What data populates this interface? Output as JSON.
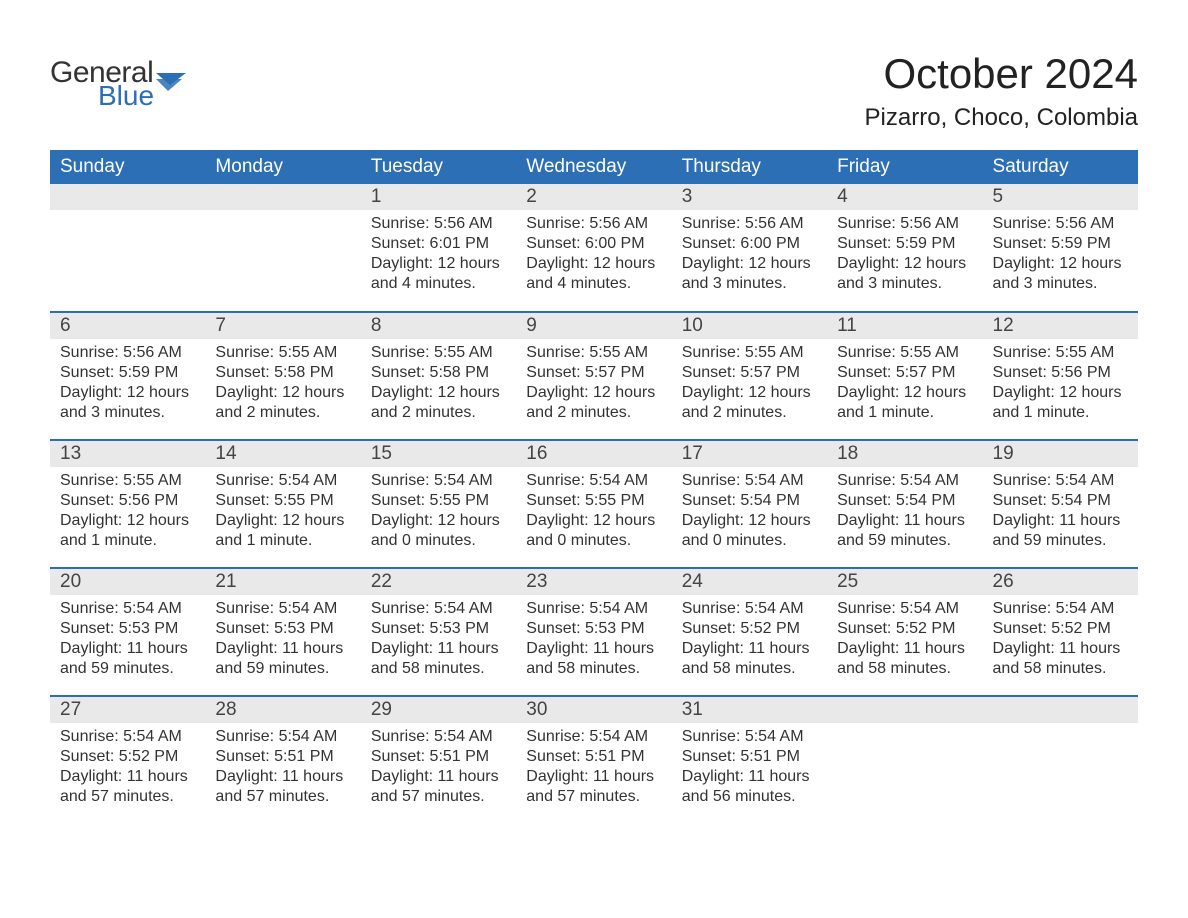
{
  "logo": {
    "general": "General",
    "blue": "Blue",
    "flag_color": "#2c6fb5"
  },
  "title": "October 2024",
  "location": "Pizarro, Choco, Colombia",
  "colors": {
    "header_bg": "#2c6fb5",
    "header_text": "#ffffff",
    "daynum_bg": "#e9e9e9",
    "row_divider": "#2c6fb5",
    "body_text": "#333333",
    "page_bg": "#ffffff"
  },
  "fonts": {
    "title_size": 42,
    "location_size": 24,
    "dayheader_size": 19,
    "body_size": 16
  },
  "day_headers": [
    "Sunday",
    "Monday",
    "Tuesday",
    "Wednesday",
    "Thursday",
    "Friday",
    "Saturday"
  ],
  "weeks": [
    [
      null,
      null,
      {
        "n": "1",
        "sunrise": "5:56 AM",
        "sunset": "6:01 PM",
        "daylight": "12 hours and 4 minutes."
      },
      {
        "n": "2",
        "sunrise": "5:56 AM",
        "sunset": "6:00 PM",
        "daylight": "12 hours and 4 minutes."
      },
      {
        "n": "3",
        "sunrise": "5:56 AM",
        "sunset": "6:00 PM",
        "daylight": "12 hours and 3 minutes."
      },
      {
        "n": "4",
        "sunrise": "5:56 AM",
        "sunset": "5:59 PM",
        "daylight": "12 hours and 3 minutes."
      },
      {
        "n": "5",
        "sunrise": "5:56 AM",
        "sunset": "5:59 PM",
        "daylight": "12 hours and 3 minutes."
      }
    ],
    [
      {
        "n": "6",
        "sunrise": "5:56 AM",
        "sunset": "5:59 PM",
        "daylight": "12 hours and 3 minutes."
      },
      {
        "n": "7",
        "sunrise": "5:55 AM",
        "sunset": "5:58 PM",
        "daylight": "12 hours and 2 minutes."
      },
      {
        "n": "8",
        "sunrise": "5:55 AM",
        "sunset": "5:58 PM",
        "daylight": "12 hours and 2 minutes."
      },
      {
        "n": "9",
        "sunrise": "5:55 AM",
        "sunset": "5:57 PM",
        "daylight": "12 hours and 2 minutes."
      },
      {
        "n": "10",
        "sunrise": "5:55 AM",
        "sunset": "5:57 PM",
        "daylight": "12 hours and 2 minutes."
      },
      {
        "n": "11",
        "sunrise": "5:55 AM",
        "sunset": "5:57 PM",
        "daylight": "12 hours and 1 minute."
      },
      {
        "n": "12",
        "sunrise": "5:55 AM",
        "sunset": "5:56 PM",
        "daylight": "12 hours and 1 minute."
      }
    ],
    [
      {
        "n": "13",
        "sunrise": "5:55 AM",
        "sunset": "5:56 PM",
        "daylight": "12 hours and 1 minute."
      },
      {
        "n": "14",
        "sunrise": "5:54 AM",
        "sunset": "5:55 PM",
        "daylight": "12 hours and 1 minute."
      },
      {
        "n": "15",
        "sunrise": "5:54 AM",
        "sunset": "5:55 PM",
        "daylight": "12 hours and 0 minutes."
      },
      {
        "n": "16",
        "sunrise": "5:54 AM",
        "sunset": "5:55 PM",
        "daylight": "12 hours and 0 minutes."
      },
      {
        "n": "17",
        "sunrise": "5:54 AM",
        "sunset": "5:54 PM",
        "daylight": "12 hours and 0 minutes."
      },
      {
        "n": "18",
        "sunrise": "5:54 AM",
        "sunset": "5:54 PM",
        "daylight": "11 hours and 59 minutes."
      },
      {
        "n": "19",
        "sunrise": "5:54 AM",
        "sunset": "5:54 PM",
        "daylight": "11 hours and 59 minutes."
      }
    ],
    [
      {
        "n": "20",
        "sunrise": "5:54 AM",
        "sunset": "5:53 PM",
        "daylight": "11 hours and 59 minutes."
      },
      {
        "n": "21",
        "sunrise": "5:54 AM",
        "sunset": "5:53 PM",
        "daylight": "11 hours and 59 minutes."
      },
      {
        "n": "22",
        "sunrise": "5:54 AM",
        "sunset": "5:53 PM",
        "daylight": "11 hours and 58 minutes."
      },
      {
        "n": "23",
        "sunrise": "5:54 AM",
        "sunset": "5:53 PM",
        "daylight": "11 hours and 58 minutes."
      },
      {
        "n": "24",
        "sunrise": "5:54 AM",
        "sunset": "5:52 PM",
        "daylight": "11 hours and 58 minutes."
      },
      {
        "n": "25",
        "sunrise": "5:54 AM",
        "sunset": "5:52 PM",
        "daylight": "11 hours and 58 minutes."
      },
      {
        "n": "26",
        "sunrise": "5:54 AM",
        "sunset": "5:52 PM",
        "daylight": "11 hours and 58 minutes."
      }
    ],
    [
      {
        "n": "27",
        "sunrise": "5:54 AM",
        "sunset": "5:52 PM",
        "daylight": "11 hours and 57 minutes."
      },
      {
        "n": "28",
        "sunrise": "5:54 AM",
        "sunset": "5:51 PM",
        "daylight": "11 hours and 57 minutes."
      },
      {
        "n": "29",
        "sunrise": "5:54 AM",
        "sunset": "5:51 PM",
        "daylight": "11 hours and 57 minutes."
      },
      {
        "n": "30",
        "sunrise": "5:54 AM",
        "sunset": "5:51 PM",
        "daylight": "11 hours and 57 minutes."
      },
      {
        "n": "31",
        "sunrise": "5:54 AM",
        "sunset": "5:51 PM",
        "daylight": "11 hours and 56 minutes."
      },
      null,
      null
    ]
  ],
  "labels": {
    "sunrise": "Sunrise:",
    "sunset": "Sunset:",
    "daylight": "Daylight:"
  }
}
